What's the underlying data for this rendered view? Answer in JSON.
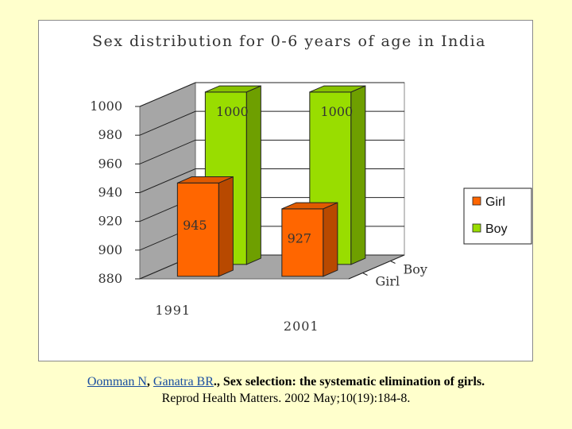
{
  "chart_data": {
    "type": "bar",
    "title": "Sex distribution for 0-6 years of age in India",
    "categories": [
      "1991",
      "2001"
    ],
    "series": [
      {
        "name": "Girl",
        "values": [
          945,
          927
        ],
        "color": "#ff6600"
      },
      {
        "name": "Boy",
        "values": [
          1000,
          1000
        ],
        "color": "#99dd00"
      }
    ],
    "ylim": [
      880,
      1000
    ],
    "yticks": [
      "880",
      "900",
      "920",
      "940",
      "960",
      "980",
      "1000"
    ],
    "depth_labels": [
      "Girl",
      "Boy"
    ],
    "data_labels": {
      "Girl": [
        "945",
        "927"
      ],
      "Boy": [
        "1000",
        "1000"
      ]
    },
    "legend": [
      "Girl",
      "Boy"
    ],
    "legend_position": "right"
  },
  "citation": {
    "author1": "Oomman N",
    "sep1": ", ",
    "author2": "Ganatra BR",
    "title": "., Sex selection: the systematic elimination of girls.",
    "journal": "Reprod Health Matters. 2002 May;10(19):184-8."
  }
}
